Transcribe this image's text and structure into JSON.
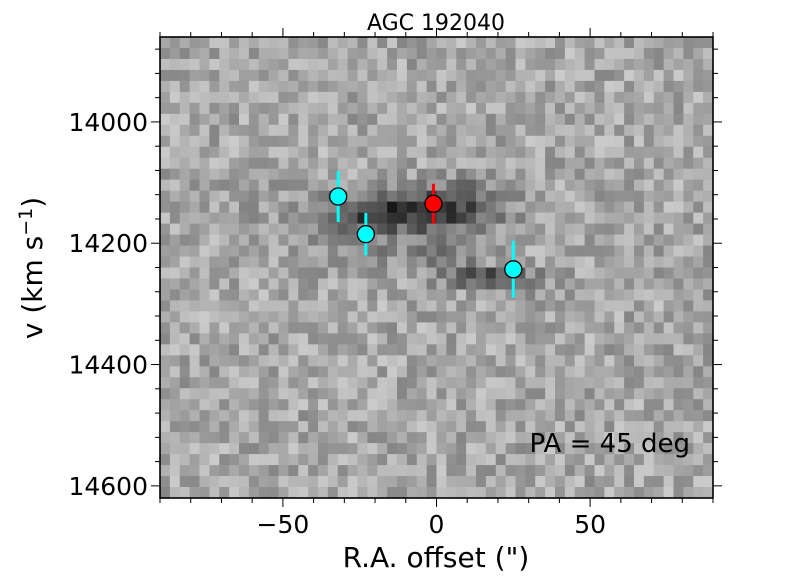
{
  "chart_data": {
    "type": "scatter",
    "title": "AGC 192040",
    "xlabel": "R.A. offset (\")",
    "ylabel": "v (km s",
    "ylabel_sup": "−1",
    "ylabel_close": ")",
    "xlim": [
      -90,
      90
    ],
    "ylim": [
      14620,
      13860
    ],
    "y_inverted": true,
    "xticks": [
      -50,
      0,
      50
    ],
    "xtick_labels": [
      "−50",
      "0",
      "50"
    ],
    "yticks": [
      14000,
      14200,
      14400,
      14600
    ],
    "ytick_labels": [
      "14000",
      "14200",
      "14400",
      "14600"
    ],
    "annotation": "PA = 45 deg",
    "background": "grayscale position–velocity image",
    "colors": {
      "cyan": "#00ffff",
      "red": "#ff0000"
    },
    "series": [
      {
        "color": "#00ffff",
        "points": [
          {
            "x": -32,
            "y": 14123,
            "yerr": 42
          },
          {
            "x": -23,
            "y": 14185,
            "yerr": 35
          },
          {
            "x": 25,
            "y": 14243,
            "yerr": 47
          }
        ]
      },
      {
        "color": "#ff0000",
        "points": [
          {
            "x": -1,
            "y": 14135,
            "yerr": 33
          }
        ]
      }
    ]
  }
}
